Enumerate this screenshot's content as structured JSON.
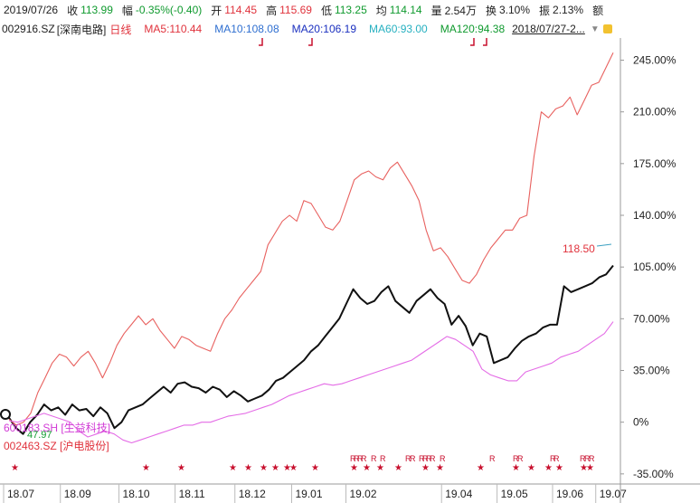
{
  "quote": {
    "date": "2019/07/26",
    "close_label": "收",
    "close_value": "113.99",
    "change_label": "幅",
    "change_value": "-0.35%(-0.40)",
    "open_label": "开",
    "open_value": "114.45",
    "high_label": "高",
    "high_value": "115.69",
    "low_label": "低",
    "low_value": "113.25",
    "avg_label": "均",
    "avg_value": "114.14",
    "volume_label": "量",
    "volume_value": "2.54万",
    "turnover_label": "换",
    "turnover_value": "3.10%",
    "amplitude_label": "振",
    "amplitude_value": "2.13%",
    "amount_label": "额"
  },
  "legend": {
    "code": "002916.SZ",
    "name": "[深南电路]",
    "period": "日线",
    "ma5": "MA5:110.44",
    "ma10": "MA10:108.08",
    "ma20": "MA20:106.19",
    "ma60": "MA60:93.00",
    "ma120": "MA120:94.38",
    "range": "2018/07/27-2...",
    "dropdown_icon": "▼"
  },
  "overlay": {
    "stock1": "600183.SH [生益科技]",
    "stock2": "002463.SZ [沪电股份]",
    "min_label": "47.97",
    "last_price": "118.50"
  },
  "chart_data": {
    "type": "line",
    "title": "",
    "ylabel": "",
    "y_unit": "%",
    "ylim": [
      -40,
      260
    ],
    "y_ticks": [
      "245.00%",
      "210.00%",
      "175.00%",
      "140.00%",
      "105.00%",
      "70.00%",
      "35.00%",
      "0%",
      "-35.00%"
    ],
    "y_tick_values": [
      245,
      210,
      175,
      140,
      105,
      70,
      35,
      0,
      -35
    ],
    "x_ticks": [
      "18.07",
      "18.09",
      "18.10",
      "18.11",
      "18.12",
      "19.01",
      "19.02",
      "19.04",
      "19.05",
      "19.06",
      "19.07"
    ],
    "x_tick_positions": [
      0,
      0.092,
      0.187,
      0.278,
      0.375,
      0.467,
      0.555,
      0.71,
      0.8,
      0.89,
      0.96
    ],
    "series": [
      {
        "name": "002916.SZ [深南电路]",
        "color": "#111111",
        "values": [
          3,
          -4,
          -8,
          0,
          5,
          12,
          8,
          10,
          5,
          12,
          8,
          9,
          4,
          10,
          6,
          -4,
          0,
          8,
          10,
          12,
          16,
          20,
          24,
          20,
          26,
          27,
          24,
          23,
          20,
          24,
          22,
          17,
          21,
          18,
          14,
          16,
          18,
          22,
          28,
          30,
          34,
          38,
          42,
          48,
          52,
          58,
          64,
          70,
          80,
          90,
          84,
          80,
          82,
          88,
          92,
          82,
          78,
          74,
          82,
          86,
          90,
          84,
          80,
          66,
          72,
          65,
          52,
          60,
          58,
          40,
          42,
          44,
          50,
          55,
          58,
          60,
          64,
          66,
          66,
          92,
          88,
          90,
          92,
          94,
          98,
          100,
          106
        ]
      },
      {
        "name": "002463.SZ [沪电股份]",
        "color": "#e8615f",
        "values": [
          2,
          -2,
          0,
          6,
          20,
          30,
          40,
          46,
          44,
          38,
          44,
          48,
          40,
          30,
          40,
          52,
          60,
          66,
          72,
          66,
          70,
          62,
          56,
          50,
          58,
          56,
          52,
          50,
          48,
          60,
          70,
          76,
          84,
          90,
          96,
          102,
          120,
          128,
          136,
          140,
          136,
          150,
          148,
          140,
          132,
          130,
          136,
          150,
          164,
          168,
          170,
          166,
          164,
          172,
          176,
          168,
          160,
          150,
          130,
          116,
          118,
          112,
          104,
          96,
          94,
          100,
          110,
          118,
          124,
          130,
          130,
          138,
          140,
          180,
          210,
          206,
          212,
          214,
          220,
          208,
          218,
          228,
          230,
          240,
          250
        ]
      },
      {
        "name": "600183.SH [生益科技]",
        "color": "#e46ce6",
        "values": [
          1,
          0,
          2,
          4,
          6,
          4,
          2,
          0,
          -6,
          -10,
          -8,
          -6,
          -8,
          -12,
          -14,
          -12,
          -10,
          -8,
          -6,
          -4,
          -2,
          -2,
          0,
          0,
          2,
          4,
          5,
          6,
          8,
          10,
          12,
          15,
          18,
          20,
          22,
          24,
          26,
          25,
          26,
          28,
          30,
          32,
          34,
          36,
          38,
          40,
          42,
          46,
          50,
          54,
          58,
          56,
          52,
          48,
          36,
          32,
          30,
          28,
          28,
          34,
          36,
          38,
          40,
          44,
          46,
          48,
          52,
          56,
          60,
          68
        ]
      }
    ]
  }
}
